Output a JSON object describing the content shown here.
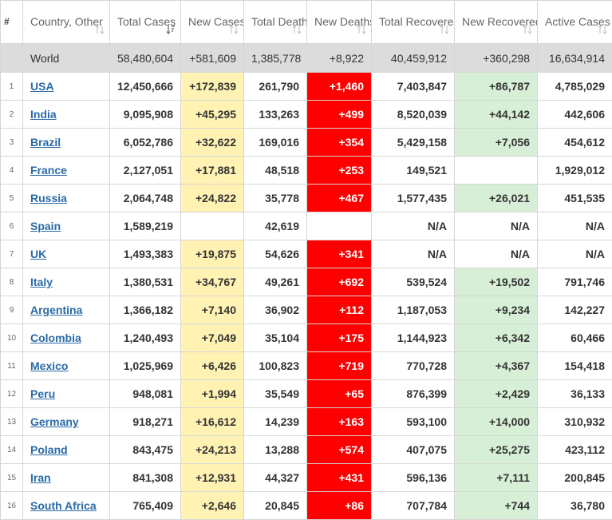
{
  "columns": [
    {
      "label": "#",
      "sort": false,
      "sort_active": false
    },
    {
      "label": "Country, Other",
      "sort": true,
      "sort_active": false
    },
    {
      "label": "Total Cases",
      "sort": true,
      "sort_active": true
    },
    {
      "label": "New Cases",
      "sort": true,
      "sort_active": false
    },
    {
      "label": "Total Deaths",
      "sort": true,
      "sort_active": false
    },
    {
      "label": "New Deaths",
      "sort": true,
      "sort_active": false
    },
    {
      "label": "Total Recovered",
      "sort": true,
      "sort_active": false
    },
    {
      "label": "New Recovered",
      "sort": true,
      "sort_active": false
    },
    {
      "label": "Active Cases",
      "sort": true,
      "sort_active": false
    }
  ],
  "world": {
    "country": "World",
    "total_cases": "58,480,604",
    "new_cases": "+581,609",
    "total_deaths": "1,385,778",
    "new_deaths": "+8,922",
    "total_recovered": "40,459,912",
    "new_recovered": "+360,298",
    "active_cases": "16,634,914"
  },
  "colors": {
    "new_cases_highlight": "#fff2b3",
    "new_deaths_highlight": "#ff0000",
    "new_recovered_highlight": "#d6efd6",
    "world_row": "#dcdcdc",
    "link": "#2a6aa6"
  },
  "rows": [
    {
      "rank": "1",
      "country": "USA",
      "total_cases": "12,450,666",
      "new_cases": "+172,839",
      "total_deaths": "261,790",
      "new_deaths": "+1,460",
      "total_recovered": "7,403,847",
      "new_recovered": "+86,787",
      "active_cases": "4,785,029"
    },
    {
      "rank": "2",
      "country": "India",
      "total_cases": "9,095,908",
      "new_cases": "+45,295",
      "total_deaths": "133,263",
      "new_deaths": "+499",
      "total_recovered": "8,520,039",
      "new_recovered": "+44,142",
      "active_cases": "442,606"
    },
    {
      "rank": "3",
      "country": "Brazil",
      "total_cases": "6,052,786",
      "new_cases": "+32,622",
      "total_deaths": "169,016",
      "new_deaths": "+354",
      "total_recovered": "5,429,158",
      "new_recovered": "+7,056",
      "active_cases": "454,612"
    },
    {
      "rank": "4",
      "country": "France",
      "total_cases": "2,127,051",
      "new_cases": "+17,881",
      "total_deaths": "48,518",
      "new_deaths": "+253",
      "total_recovered": "149,521",
      "new_recovered": "",
      "active_cases": "1,929,012"
    },
    {
      "rank": "5",
      "country": "Russia",
      "total_cases": "2,064,748",
      "new_cases": "+24,822",
      "total_deaths": "35,778",
      "new_deaths": "+467",
      "total_recovered": "1,577,435",
      "new_recovered": "+26,021",
      "active_cases": "451,535"
    },
    {
      "rank": "6",
      "country": "Spain",
      "total_cases": "1,589,219",
      "new_cases": "",
      "total_deaths": "42,619",
      "new_deaths": "",
      "total_recovered": "N/A",
      "new_recovered": "N/A",
      "active_cases": "N/A"
    },
    {
      "rank": "7",
      "country": "UK",
      "total_cases": "1,493,383",
      "new_cases": "+19,875",
      "total_deaths": "54,626",
      "new_deaths": "+341",
      "total_recovered": "N/A",
      "new_recovered": "N/A",
      "active_cases": "N/A"
    },
    {
      "rank": "8",
      "country": "Italy",
      "total_cases": "1,380,531",
      "new_cases": "+34,767",
      "total_deaths": "49,261",
      "new_deaths": "+692",
      "total_recovered": "539,524",
      "new_recovered": "+19,502",
      "active_cases": "791,746"
    },
    {
      "rank": "9",
      "country": "Argentina",
      "total_cases": "1,366,182",
      "new_cases": "+7,140",
      "total_deaths": "36,902",
      "new_deaths": "+112",
      "total_recovered": "1,187,053",
      "new_recovered": "+9,234",
      "active_cases": "142,227"
    },
    {
      "rank": "10",
      "country": "Colombia",
      "total_cases": "1,240,493",
      "new_cases": "+7,049",
      "total_deaths": "35,104",
      "new_deaths": "+175",
      "total_recovered": "1,144,923",
      "new_recovered": "+6,342",
      "active_cases": "60,466"
    },
    {
      "rank": "11",
      "country": "Mexico",
      "total_cases": "1,025,969",
      "new_cases": "+6,426",
      "total_deaths": "100,823",
      "new_deaths": "+719",
      "total_recovered": "770,728",
      "new_recovered": "+4,367",
      "active_cases": "154,418"
    },
    {
      "rank": "12",
      "country": "Peru",
      "total_cases": "948,081",
      "new_cases": "+1,994",
      "total_deaths": "35,549",
      "new_deaths": "+65",
      "total_recovered": "876,399",
      "new_recovered": "+2,429",
      "active_cases": "36,133"
    },
    {
      "rank": "13",
      "country": "Germany",
      "total_cases": "918,271",
      "new_cases": "+16,612",
      "total_deaths": "14,239",
      "new_deaths": "+163",
      "total_recovered": "593,100",
      "new_recovered": "+14,000",
      "active_cases": "310,932"
    },
    {
      "rank": "14",
      "country": "Poland",
      "total_cases": "843,475",
      "new_cases": "+24,213",
      "total_deaths": "13,288",
      "new_deaths": "+574",
      "total_recovered": "407,075",
      "new_recovered": "+25,275",
      "active_cases": "423,112"
    },
    {
      "rank": "15",
      "country": "Iran",
      "total_cases": "841,308",
      "new_cases": "+12,931",
      "total_deaths": "44,327",
      "new_deaths": "+431",
      "total_recovered": "596,136",
      "new_recovered": "+7,111",
      "active_cases": "200,845"
    },
    {
      "rank": "16",
      "country": "South Africa",
      "total_cases": "765,409",
      "new_cases": "+2,646",
      "total_deaths": "20,845",
      "new_deaths": "+86",
      "total_recovered": "707,784",
      "new_recovered": "+744",
      "active_cases": "36,780"
    }
  ]
}
